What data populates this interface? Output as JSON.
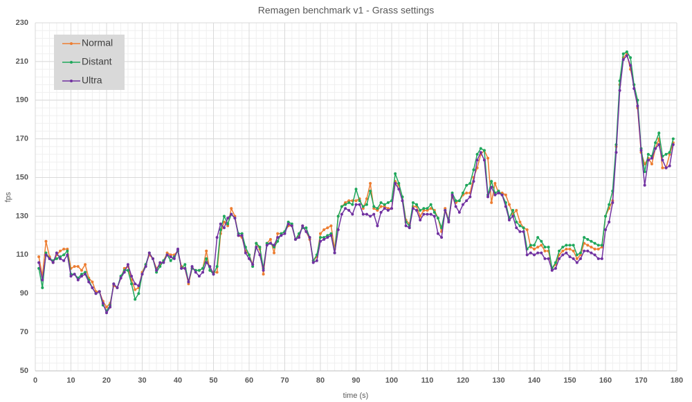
{
  "chart_data": {
    "type": "line",
    "title": "Remagen benchmark v1 - Grass settings",
    "x_label": "time (s)",
    "y_label": "fps",
    "xlim": [
      0,
      180
    ],
    "xticks": [
      0,
      10,
      20,
      30,
      40,
      50,
      60,
      70,
      80,
      90,
      100,
      110,
      120,
      130,
      140,
      150,
      160,
      170,
      180
    ],
    "ylim": [
      50,
      230
    ],
    "yticks": [
      50,
      70,
      90,
      110,
      130,
      150,
      170,
      190,
      210,
      230
    ],
    "grid": true,
    "legend": "top-left",
    "x": [
      1,
      2,
      3,
      4,
      5,
      6,
      7,
      8,
      9,
      10,
      11,
      12,
      13,
      14,
      15,
      16,
      17,
      18,
      19,
      20,
      21,
      22,
      23,
      24,
      25,
      26,
      27,
      28,
      29,
      30,
      31,
      32,
      33,
      34,
      35,
      36,
      37,
      38,
      39,
      40,
      41,
      42,
      43,
      44,
      45,
      46,
      47,
      48,
      49,
      50,
      51,
      52,
      53,
      54,
      55,
      56,
      57,
      58,
      59,
      60,
      61,
      62,
      63,
      64,
      65,
      66,
      67,
      68,
      69,
      70,
      71,
      72,
      73,
      74,
      75,
      76,
      77,
      78,
      79,
      80,
      81,
      82,
      83,
      84,
      85,
      86,
      87,
      88,
      89,
      90,
      91,
      92,
      93,
      94,
      95,
      96,
      97,
      98,
      99,
      100,
      101,
      102,
      103,
      104,
      105,
      106,
      107,
      108,
      109,
      110,
      111,
      112,
      113,
      114,
      115,
      116,
      117,
      118,
      119,
      120,
      121,
      122,
      123,
      124,
      125,
      126,
      127,
      128,
      129,
      130,
      131,
      132,
      133,
      134,
      135,
      136,
      137,
      138,
      139,
      140,
      141,
      142,
      143,
      144,
      145,
      146,
      147,
      148,
      149,
      150,
      151,
      152,
      153,
      154,
      155,
      156,
      157,
      158,
      159,
      160,
      161,
      162,
      163,
      164,
      165,
      166,
      167,
      168,
      169,
      170,
      171,
      172,
      173,
      174,
      175,
      176,
      177,
      178,
      179
    ],
    "series": [
      {
        "name": "Normal",
        "color": "#ed7d31",
        "values": [
          109,
          99,
          117,
          109,
          106,
          110,
          112,
          113,
          113,
          103,
          104,
          104,
          102,
          105,
          98,
          96,
          91,
          91,
          86,
          83,
          85,
          94,
          93,
          98,
          103,
          104,
          97,
          92,
          93,
          101,
          105,
          110,
          108,
          103,
          105,
          107,
          111,
          110,
          110,
          112,
          104,
          103,
          95,
          103,
          102,
          102,
          103,
          112,
          102,
          101,
          101,
          121,
          127,
          125,
          134,
          130,
          120,
          119,
          112,
          110,
          105,
          116,
          113,
          100,
          116,
          118,
          111,
          121,
          121,
          122,
          125,
          125,
          118,
          120,
          125,
          122,
          118,
          107,
          109,
          121,
          123,
          124,
          125,
          113,
          130,
          135,
          137,
          138,
          138,
          138,
          139,
          134,
          139,
          147,
          134,
          133,
          135,
          135,
          134,
          134,
          148,
          146,
          140,
          128,
          126,
          135,
          135,
          130,
          133,
          133,
          134,
          133,
          129,
          122,
          134,
          128,
          140,
          137,
          138,
          141,
          142,
          142,
          150,
          155,
          162,
          164,
          160,
          137,
          147,
          142,
          142,
          141,
          136,
          131,
          133,
          127,
          124,
          123,
          114,
          113,
          114,
          115,
          112,
          112,
          103,
          105,
          110,
          112,
          113,
          113,
          112,
          108,
          110,
          116,
          115,
          114,
          113,
          113,
          114,
          130,
          134,
          138,
          166,
          198,
          212,
          214,
          206,
          198,
          186,
          163,
          157,
          160,
          157,
          165,
          170,
          155,
          155,
          162,
          168
        ]
      },
      {
        "name": "Distant",
        "color": "#1ea75b",
        "values": [
          103,
          93,
          111,
          108,
          107,
          108,
          109,
          110,
          112,
          100,
          100,
          98,
          100,
          101,
          97,
          93,
          90,
          91,
          84,
          81,
          84,
          95,
          93,
          99,
          102,
          102,
          95,
          87,
          90,
          100,
          105,
          111,
          108,
          101,
          104,
          107,
          110,
          107,
          109,
          112,
          103,
          105,
          96,
          103,
          102,
          102,
          103,
          108,
          102,
          100,
          104,
          123,
          130,
          126,
          131,
          129,
          121,
          121,
          114,
          110,
          104,
          116,
          114,
          103,
          116,
          116,
          114,
          117,
          121,
          122,
          127,
          126,
          118,
          121,
          124,
          124,
          119,
          107,
          110,
          119,
          119,
          120,
          121,
          111,
          130,
          135,
          136,
          137,
          136,
          144,
          138,
          135,
          136,
          143,
          135,
          134,
          137,
          136,
          137,
          138,
          152,
          147,
          140,
          127,
          125,
          137,
          136,
          133,
          134,
          134,
          136,
          132,
          129,
          124,
          133,
          128,
          142,
          138,
          138,
          142,
          146,
          147,
          154,
          162,
          165,
          164,
          141,
          148,
          142,
          143,
          141,
          137,
          129,
          133,
          127,
          125,
          124,
          113,
          115,
          115,
          119,
          117,
          114,
          114,
          103,
          106,
          112,
          114,
          115,
          115,
          115,
          110,
          111,
          119,
          118,
          117,
          116,
          115,
          115,
          130,
          136,
          143,
          167,
          200,
          214,
          215,
          212,
          198,
          190,
          165,
          153,
          162,
          161,
          168,
          173,
          161,
          162,
          163,
          170
        ]
      },
      {
        "name": "Ultra",
        "color": "#7030a0",
        "values": [
          106,
          97,
          110,
          108,
          106,
          111,
          108,
          107,
          110,
          99,
          100,
          97,
          99,
          100,
          96,
          93,
          90,
          91,
          85,
          80,
          83,
          95,
          93,
          98,
          101,
          105,
          99,
          95,
          94,
          100,
          104,
          111,
          108,
          102,
          106,
          106,
          110,
          109,
          108,
          113,
          103,
          103,
          96,
          104,
          101,
          99,
          101,
          106,
          104,
          100,
          119,
          126,
          124,
          129,
          131,
          129,
          120,
          120,
          111,
          108,
          105,
          114,
          110,
          102,
          115,
          116,
          115,
          119,
          120,
          121,
          126,
          125,
          118,
          119,
          125,
          122,
          119,
          106,
          107,
          117,
          118,
          119,
          120,
          111,
          123,
          131,
          134,
          133,
          131,
          136,
          136,
          131,
          131,
          130,
          131,
          125,
          132,
          134,
          133,
          134,
          147,
          144,
          138,
          125,
          124,
          134,
          133,
          128,
          131,
          131,
          131,
          130,
          121,
          119,
          133,
          127,
          141,
          135,
          132,
          136,
          138,
          140,
          148,
          159,
          163,
          159,
          140,
          145,
          141,
          142,
          141,
          135,
          128,
          130,
          124,
          122,
          122,
          110,
          111,
          110,
          111,
          111,
          108,
          108,
          102,
          103,
          108,
          110,
          111,
          109,
          108,
          106,
          108,
          112,
          112,
          111,
          110,
          108,
          108,
          123,
          127,
          137,
          163,
          195,
          211,
          213,
          208,
          196,
          187,
          164,
          146,
          159,
          160,
          165,
          167,
          159,
          155,
          156,
          167
        ]
      }
    ]
  }
}
